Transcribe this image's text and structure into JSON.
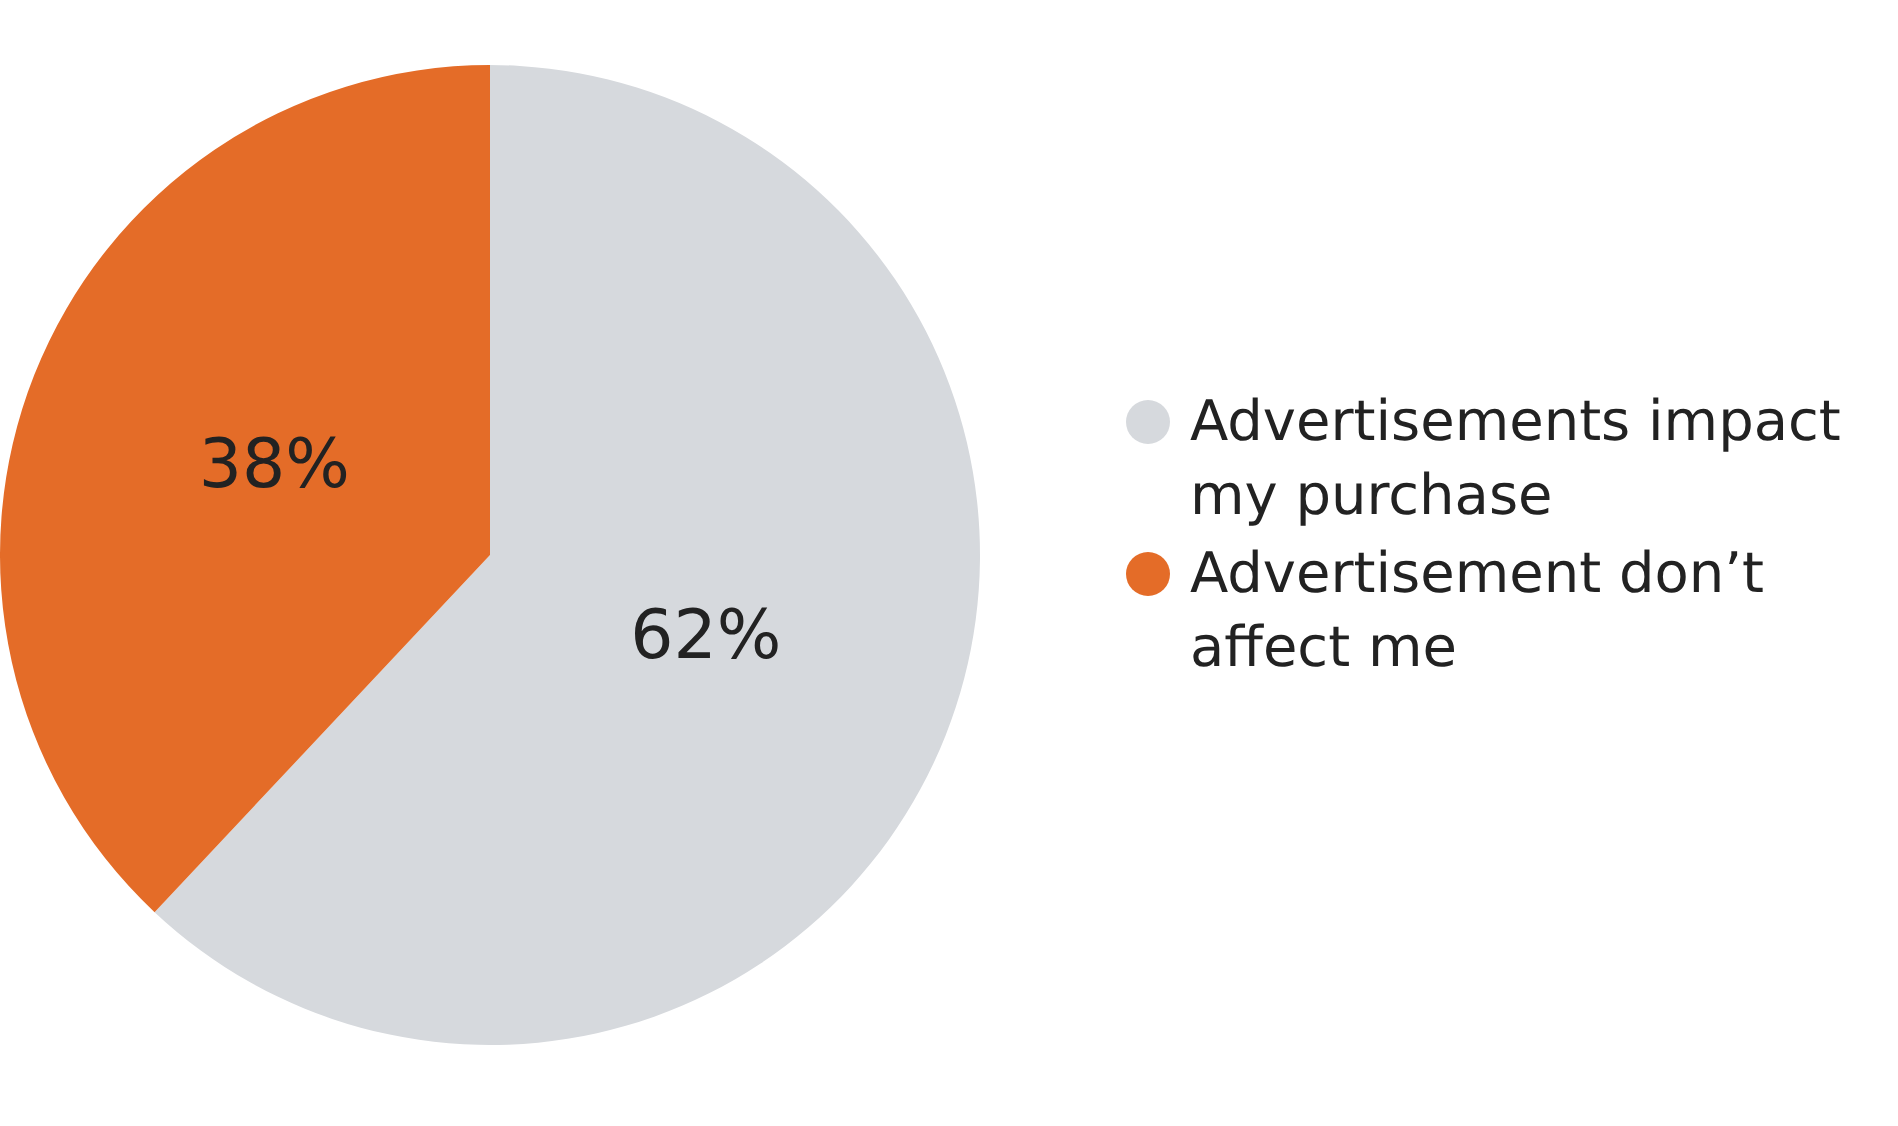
{
  "chart_data": {
    "type": "pie",
    "categories": [
      "Advertisements impact my purchase",
      "Advertisement don’t affect me"
    ],
    "values": [
      62,
      38
    ],
    "colors": [
      "#d6d9dd",
      "#e46c28"
    ],
    "value_labels": [
      "62%",
      "38%"
    ],
    "legend": "right"
  }
}
